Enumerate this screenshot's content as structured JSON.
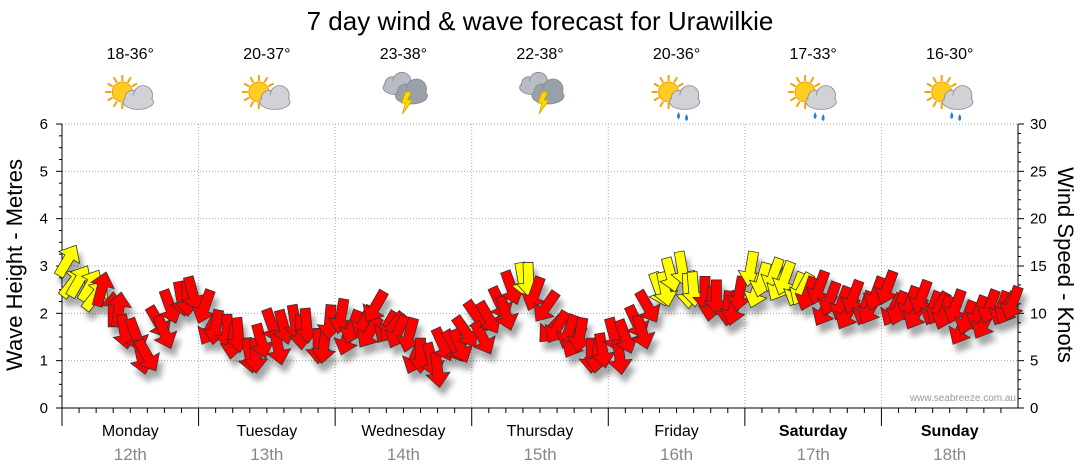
{
  "chart_data": {
    "type": "wind-wave-forecast",
    "title": "7 day wind & wave forecast for Urawilkie",
    "ylabel_left": "Wave Height - Metres",
    "ylabel_right": "Wind Speed - Knots",
    "ylim_left": [
      0,
      6
    ],
    "ylim_right": [
      0,
      30
    ],
    "left_ticks": [
      "0",
      "1",
      "2",
      "3",
      "4",
      "5",
      "6"
    ],
    "right_ticks": [
      "0",
      "5",
      "10",
      "15",
      "20",
      "25",
      "30"
    ],
    "watermark": "www.seabreeze.com.au",
    "days": [
      {
        "day": "Monday",
        "date": "12th",
        "temp": "18-36°",
        "icon": "partly-cloudy-sun-icon",
        "weekend": false
      },
      {
        "day": "Tuesday",
        "date": "13th",
        "temp": "20-37°",
        "icon": "partly-cloudy-sun-icon",
        "weekend": false
      },
      {
        "day": "Wednesday",
        "date": "14th",
        "temp": "23-38°",
        "icon": "thunderstorm-icon",
        "weekend": false
      },
      {
        "day": "Thursday",
        "date": "15th",
        "temp": "22-38°",
        "icon": "thunderstorm-icon",
        "weekend": false
      },
      {
        "day": "Friday",
        "date": "16th",
        "temp": "20-36°",
        "icon": "sun-showers-icon",
        "weekend": false
      },
      {
        "day": "Saturday",
        "date": "17th",
        "temp": "17-33°",
        "icon": "sun-showers-icon",
        "weekend": true
      },
      {
        "day": "Sunday",
        "date": "18th",
        "temp": "16-30°",
        "icon": "sun-showers-icon",
        "weekend": true
      }
    ],
    "wind_speed_knots": [
      15,
      14,
      13,
      12,
      11,
      8,
      7,
      6,
      9,
      10,
      12,
      12,
      10,
      9,
      8,
      7,
      6,
      7,
      8,
      9,
      9,
      8,
      7,
      9,
      9,
      9,
      9,
      10,
      9,
      8,
      7,
      6,
      5,
      6,
      7,
      8,
      9,
      10,
      11,
      12,
      14,
      12,
      10,
      9,
      8,
      7,
      6,
      6,
      7,
      8,
      9,
      10,
      13,
      14,
      14,
      13,
      12,
      11,
      11,
      12,
      14,
      14,
      14,
      13,
      13,
      12,
      12,
      12,
      11,
      11,
      11,
      12,
      12,
      11,
      11,
      11,
      11,
      10,
      10,
      10,
      10,
      10,
      11,
      11
    ],
    "wind_direction_deg": [
      300,
      300,
      300,
      285,
      270,
      80,
      70,
      60,
      60,
      70,
      80,
      75,
      110,
      100,
      90,
      85,
      80,
      75,
      70,
      75,
      80,
      85,
      90,
      95,
      100,
      110,
      115,
      120,
      120,
      115,
      105,
      90,
      75,
      65,
      60,
      55,
      55,
      60,
      65,
      70,
      80,
      110,
      125,
      120,
      110,
      100,
      90,
      80,
      75,
      70,
      65,
      60,
      70,
      75,
      80,
      85,
      90,
      90,
      95,
      100,
      100,
      105,
      110,
      110,
      110,
      110,
      110,
      110,
      110,
      110,
      110,
      110,
      110,
      110,
      110,
      110,
      110,
      110,
      110,
      110,
      110,
      110,
      110,
      110
    ],
    "color_legend": {
      "strong": "#ff0000",
      "moderate": "#ffff00",
      "threshold_knots": 12.5
    },
    "colors": {
      "strong": "#ff0000",
      "moderate": "#ffff00",
      "grid": "#aaaaaa",
      "axis": "#000000",
      "watermark": "#999999"
    }
  }
}
